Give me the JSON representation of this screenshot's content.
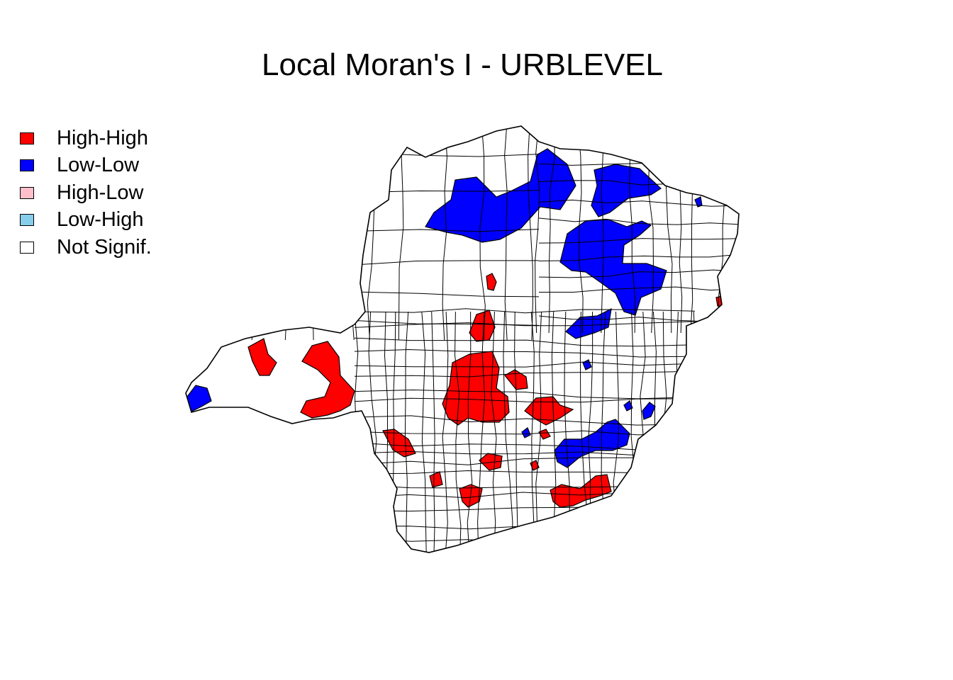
{
  "title": "Local Moran's I - URBLEVEL",
  "legend": [
    {
      "label": "High-High",
      "color": "#ff0000"
    },
    {
      "label": "Low-Low",
      "color": "#0000ff"
    },
    {
      "label": "High-Low",
      "color": "#ffc0cb"
    },
    {
      "label": "Low-High",
      "color": "#87ceeb"
    },
    {
      "label": "Not Signif.",
      "color": "#ffffff"
    }
  ],
  "map": {
    "region_shown": "municipalities",
    "high_high_color": "#ff0000",
    "low_low_color": "#0000ff",
    "not_signif_color": "#ffffff",
    "border_color": "#000000"
  }
}
